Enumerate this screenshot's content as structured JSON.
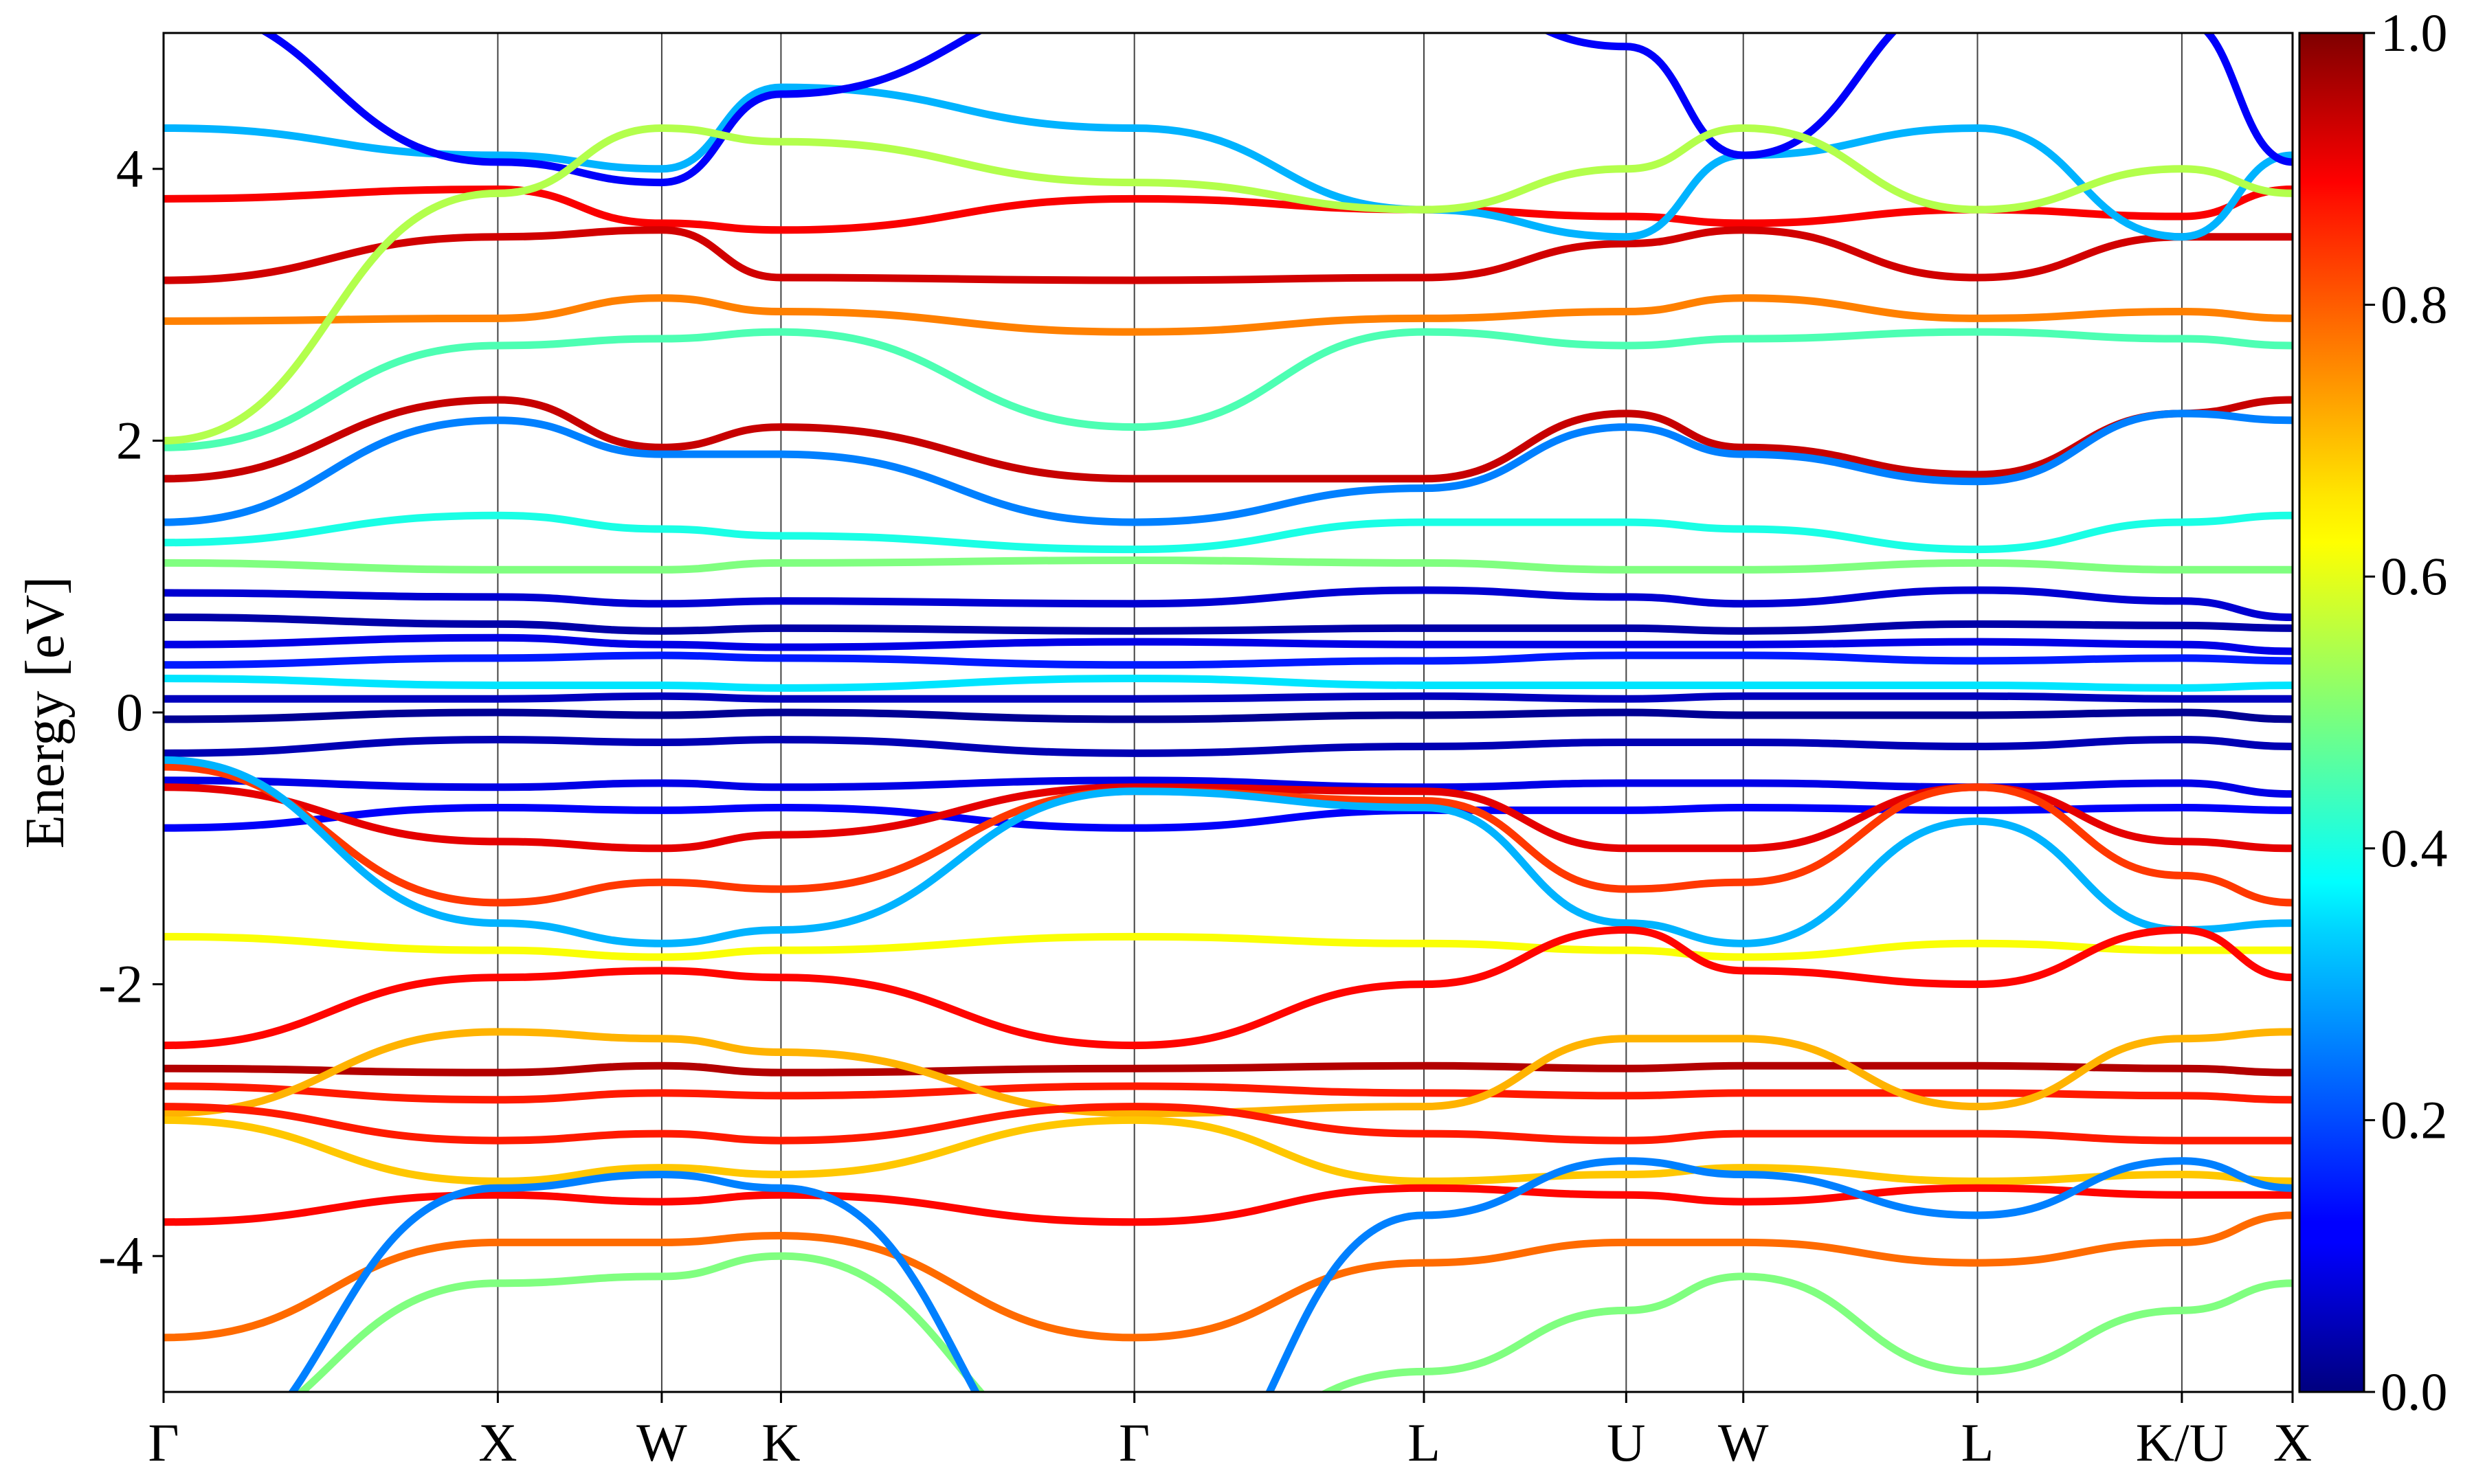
{
  "chart_data": {
    "type": "line",
    "title": "",
    "xlabel": "",
    "ylabel": "Energy [eV]",
    "ylim": [
      -5,
      5
    ],
    "yticks": [
      -4,
      -2,
      0,
      2,
      4
    ],
    "ytick_labels": [
      "-4",
      "-2",
      "0",
      "2",
      "4"
    ],
    "kpoints": [
      {
        "label": "Γ",
        "x": 0.0
      },
      {
        "label": "X",
        "x": 0.157
      },
      {
        "label": "W",
        "x": 0.234
      },
      {
        "label": "K",
        "x": 0.29
      },
      {
        "label": "Γ",
        "x": 0.456
      },
      {
        "label": "L",
        "x": 0.592
      },
      {
        "label": "U",
        "x": 0.687
      },
      {
        "label": "W",
        "x": 0.742
      },
      {
        "label": "L",
        "x": 0.852
      },
      {
        "label": "K/U",
        "x": 0.948
      },
      {
        "label": "X",
        "x": 1.0
      }
    ],
    "colormap": "jet",
    "colorbar": {
      "range": [
        0.0,
        1.0
      ],
      "ticks": [
        0.0,
        0.2,
        0.4,
        0.6,
        0.8,
        1.0
      ],
      "tick_labels": [
        "0.0",
        "0.2",
        "0.4",
        "0.6",
        "0.8",
        "1.0"
      ]
    },
    "grid": false,
    "series": [
      {
        "x": [
          0.0,
          0.157,
          0.234,
          0.29,
          0.456,
          0.592,
          0.687,
          0.742,
          0.852,
          0.948,
          1.0
        ],
        "y": [
          3.78,
          3.85,
          3.6,
          3.55,
          3.78,
          3.7,
          3.65,
          3.6,
          3.7,
          3.65,
          3.85
        ],
        "c": 0.88
      },
      {
        "x": [
          0.0,
          0.157,
          0.234,
          0.29,
          0.456,
          0.592,
          0.687,
          0.742,
          0.852,
          0.948,
          1.0
        ],
        "y": [
          3.18,
          3.5,
          3.55,
          3.2,
          3.18,
          3.2,
          3.45,
          3.55,
          3.2,
          3.5,
          3.5
        ],
        "c": 0.92
      },
      {
        "x": [
          0.0,
          0.157,
          0.234,
          0.29,
          0.456,
          0.592,
          0.687,
          0.742,
          0.852,
          0.948,
          1.0
        ],
        "y": [
          2.88,
          2.9,
          3.05,
          2.95,
          2.8,
          2.9,
          2.95,
          3.05,
          2.9,
          2.95,
          2.9
        ],
        "c": 0.75
      },
      {
        "x": [
          0.0,
          0.157,
          0.234,
          0.29,
          0.456,
          0.592,
          0.687,
          0.742,
          0.852,
          0.948,
          1.0
        ],
        "y": [
          1.72,
          2.3,
          1.95,
          2.1,
          1.72,
          1.72,
          2.2,
          1.95,
          1.75,
          2.2,
          2.3
        ],
        "c": 0.93
      },
      {
        "x": [
          0.0,
          0.157,
          0.234,
          0.29,
          0.456,
          0.592,
          0.687,
          0.742,
          0.852,
          0.948,
          1.0
        ],
        "y": [
          1.4,
          2.15,
          1.9,
          1.9,
          1.4,
          1.65,
          2.1,
          1.9,
          1.7,
          2.2,
          2.15
        ],
        "c": 0.25
      },
      {
        "x": [
          0.0,
          0.157,
          0.234,
          0.29,
          0.456,
          0.592,
          0.687,
          0.742,
          0.852,
          0.948,
          1.0
        ],
        "y": [
          1.95,
          2.7,
          2.75,
          2.8,
          2.1,
          2.8,
          2.7,
          2.75,
          2.8,
          2.75,
          2.7
        ],
        "c": 0.45
      },
      {
        "x": [
          0.0,
          0.157,
          0.234,
          0.29,
          0.456,
          0.592,
          0.687,
          0.742,
          0.852,
          0.948,
          1.0
        ],
        "y": [
          1.25,
          1.45,
          1.35,
          1.3,
          1.2,
          1.4,
          1.4,
          1.35,
          1.2,
          1.4,
          1.45
        ],
        "c": 0.4
      },
      {
        "x": [
          0.0,
          0.157,
          0.234,
          0.29,
          0.456,
          0.592,
          0.687,
          0.742,
          0.852,
          0.948,
          1.0
        ],
        "y": [
          1.1,
          1.05,
          1.05,
          1.1,
          1.12,
          1.1,
          1.05,
          1.05,
          1.1,
          1.05,
          1.05
        ],
        "c": 0.5
      },
      {
        "x": [
          0.0,
          0.157,
          0.234,
          0.29,
          0.456,
          0.592,
          0.687,
          0.742,
          0.852,
          0.948,
          1.0
        ],
        "y": [
          0.88,
          0.85,
          0.8,
          0.82,
          0.8,
          0.9,
          0.85,
          0.8,
          0.9,
          0.82,
          0.7
        ],
        "c": 0.08
      },
      {
        "x": [
          0.0,
          0.157,
          0.234,
          0.29,
          0.456,
          0.592,
          0.687,
          0.742,
          0.852,
          0.948,
          1.0
        ],
        "y": [
          0.7,
          0.65,
          0.6,
          0.62,
          0.6,
          0.62,
          0.62,
          0.6,
          0.65,
          0.64,
          0.62
        ],
        "c": 0.04
      },
      {
        "x": [
          0.0,
          0.157,
          0.234,
          0.29,
          0.456,
          0.592,
          0.687,
          0.742,
          0.852,
          0.948,
          1.0
        ],
        "y": [
          0.5,
          0.55,
          0.5,
          0.48,
          0.52,
          0.5,
          0.5,
          0.5,
          0.52,
          0.5,
          0.45
        ],
        "c": 0.1
      },
      {
        "x": [
          0.0,
          0.157,
          0.234,
          0.29,
          0.456,
          0.592,
          0.687,
          0.742,
          0.852,
          0.948,
          1.0
        ],
        "y": [
          0.35,
          0.4,
          0.42,
          0.4,
          0.35,
          0.38,
          0.42,
          0.42,
          0.38,
          0.4,
          0.38
        ],
        "c": 0.15
      },
      {
        "x": [
          0.0,
          0.157,
          0.234,
          0.29,
          0.456,
          0.592,
          0.687,
          0.742,
          0.852,
          0.948,
          1.0
        ],
        "y": [
          0.25,
          0.2,
          0.2,
          0.18,
          0.25,
          0.2,
          0.2,
          0.2,
          0.2,
          0.18,
          0.2
        ],
        "c": 0.35
      },
      {
        "x": [
          0.0,
          0.157,
          0.234,
          0.29,
          0.456,
          0.592,
          0.687,
          0.742,
          0.852,
          0.948,
          1.0
        ],
        "y": [
          0.1,
          0.1,
          0.12,
          0.1,
          0.1,
          0.12,
          0.1,
          0.12,
          0.12,
          0.1,
          0.1
        ],
        "c": 0.06
      },
      {
        "x": [
          0.0,
          0.157,
          0.234,
          0.29,
          0.456,
          0.592,
          0.687,
          0.742,
          0.852,
          0.948,
          1.0
        ],
        "y": [
          -0.05,
          0.0,
          -0.02,
          0.0,
          -0.05,
          -0.02,
          0.0,
          -0.02,
          -0.02,
          0.0,
          -0.05
        ],
        "c": 0.02
      },
      {
        "x": [
          0.0,
          0.157,
          0.234,
          0.29,
          0.456,
          0.592,
          0.687,
          0.742,
          0.852,
          0.948,
          1.0
        ],
        "y": [
          -0.3,
          -0.2,
          -0.22,
          -0.2,
          -0.3,
          -0.25,
          -0.22,
          -0.22,
          -0.25,
          -0.2,
          -0.25
        ],
        "c": 0.05
      },
      {
        "x": [
          0.0,
          0.157,
          0.234,
          0.29,
          0.456,
          0.592,
          0.687,
          0.742,
          0.852,
          0.948,
          1.0
        ],
        "y": [
          -0.5,
          -0.55,
          -0.52,
          -0.55,
          -0.5,
          -0.55,
          -0.52,
          -0.52,
          -0.55,
          -0.52,
          -0.6
        ],
        "c": 0.1
      },
      {
        "x": [
          0.0,
          0.157,
          0.234,
          0.29,
          0.456,
          0.592,
          0.687,
          0.742,
          0.852,
          0.948,
          1.0
        ],
        "y": [
          -0.85,
          -0.7,
          -0.72,
          -0.7,
          -0.85,
          -0.72,
          -0.72,
          -0.7,
          -0.72,
          -0.7,
          -0.72
        ],
        "c": 0.12
      },
      {
        "x": [
          0.0,
          0.157,
          0.234,
          0.29,
          0.456,
          0.592,
          0.687,
          0.742,
          0.852,
          0.948,
          1.0
        ],
        "y": [
          -0.55,
          -0.95,
          -1.0,
          -0.9,
          -0.55,
          -0.58,
          -1.0,
          -1.0,
          -0.55,
          -0.95,
          -1.0
        ],
        "c": 0.9
      },
      {
        "x": [
          0.0,
          0.157,
          0.234,
          0.29,
          0.456,
          0.592,
          0.687,
          0.742,
          0.852,
          0.948,
          1.0
        ],
        "y": [
          -0.4,
          -1.4,
          -1.25,
          -1.3,
          -0.58,
          -0.65,
          -1.3,
          -1.25,
          -0.55,
          -1.2,
          -1.4
        ],
        "c": 0.82
      },
      {
        "x": [
          0.0,
          0.157,
          0.234,
          0.29,
          0.456,
          0.592,
          0.687,
          0.742,
          0.852,
          0.948,
          1.0
        ],
        "y": [
          -0.35,
          -1.55,
          -1.7,
          -1.6,
          -0.58,
          -0.7,
          -1.55,
          -1.7,
          -0.8,
          -1.6,
          -1.55
        ],
        "c": 0.3
      },
      {
        "x": [
          0.0,
          0.157,
          0.234,
          0.29,
          0.456,
          0.592,
          0.687,
          0.742,
          0.852,
          0.948,
          1.0
        ],
        "y": [
          -1.65,
          -1.75,
          -1.8,
          -1.75,
          -1.65,
          -1.7,
          -1.75,
          -1.8,
          -1.7,
          -1.75,
          -1.75
        ],
        "c": 0.62
      },
      {
        "x": [
          0.0,
          0.157,
          0.234,
          0.29,
          0.456,
          0.592,
          0.687,
          0.742,
          0.852,
          0.948,
          1.0
        ],
        "y": [
          -2.45,
          -1.95,
          -1.9,
          -1.95,
          -2.45,
          -2.0,
          -1.6,
          -1.9,
          -2.0,
          -1.6,
          -1.95
        ],
        "c": 0.87
      },
      {
        "x": [
          0.0,
          0.157,
          0.234,
          0.29,
          0.456,
          0.592,
          0.687,
          0.742,
          0.852,
          0.948,
          1.0
        ],
        "y": [
          -2.62,
          -2.65,
          -2.6,
          -2.65,
          -2.62,
          -2.6,
          -2.62,
          -2.6,
          -2.6,
          -2.62,
          -2.65
        ],
        "c": 0.95
      },
      {
        "x": [
          0.0,
          0.157,
          0.234,
          0.29,
          0.456,
          0.592,
          0.687,
          0.742,
          0.852,
          0.948,
          1.0
        ],
        "y": [
          -2.75,
          -2.85,
          -2.8,
          -2.82,
          -2.75,
          -2.8,
          -2.82,
          -2.8,
          -2.8,
          -2.82,
          -2.85
        ],
        "c": 0.85
      },
      {
        "x": [
          0.0,
          0.157,
          0.234,
          0.29,
          0.456,
          0.592,
          0.687,
          0.742,
          0.852,
          0.948,
          1.0
        ],
        "y": [
          -2.95,
          -2.35,
          -2.4,
          -2.5,
          -2.95,
          -2.9,
          -2.4,
          -2.4,
          -2.9,
          -2.4,
          -2.35
        ],
        "c": 0.7
      },
      {
        "x": [
          0.0,
          0.157,
          0.234,
          0.29,
          0.456,
          0.592,
          0.687,
          0.742,
          0.852,
          0.948,
          1.0
        ],
        "y": [
          -2.9,
          -3.15,
          -3.1,
          -3.15,
          -2.9,
          -3.1,
          -3.15,
          -3.1,
          -3.1,
          -3.15,
          -3.15
        ],
        "c": 0.85
      },
      {
        "x": [
          0.0,
          0.157,
          0.234,
          0.29,
          0.456,
          0.592,
          0.687,
          0.742,
          0.852,
          0.948,
          1.0
        ],
        "y": [
          -3.0,
          -3.45,
          -3.35,
          -3.4,
          -3.0,
          -3.45,
          -3.4,
          -3.35,
          -3.45,
          -3.4,
          -3.45
        ],
        "c": 0.68
      },
      {
        "x": [
          0.0,
          0.157,
          0.234,
          0.29,
          0.456,
          0.592,
          0.687,
          0.742,
          0.852,
          0.948,
          1.0
        ],
        "y": [
          -3.75,
          -3.55,
          -3.6,
          -3.55,
          -3.75,
          -3.5,
          -3.55,
          -3.6,
          -3.5,
          -3.55,
          -3.55
        ],
        "c": 0.87
      },
      {
        "x": [
          0.0,
          0.157,
          0.234,
          0.29,
          0.456,
          0.592,
          0.687,
          0.742,
          0.852,
          0.948,
          1.0
        ],
        "y": [
          -4.6,
          -3.9,
          -3.9,
          -3.85,
          -4.6,
          -4.05,
          -3.9,
          -3.9,
          -4.05,
          -3.9,
          -3.7
        ],
        "c": 0.77
      },
      {
        "x": [
          0.0,
          0.157,
          0.234,
          0.29,
          0.456,
          0.592,
          0.687,
          0.742,
          0.852,
          0.948,
          1.0
        ],
        "y": [
          -5.4,
          -4.2,
          -4.15,
          -4.0,
          -5.6,
          -4.85,
          -4.4,
          -4.15,
          -4.85,
          -4.4,
          -4.2
        ],
        "c": 0.5
      },
      {
        "x": [
          0.0,
          0.157,
          0.234,
          0.29,
          0.456,
          0.592,
          0.687,
          0.742,
          0.852,
          0.948,
          1.0
        ],
        "y": [
          -5.6,
          -3.5,
          -3.4,
          -3.5,
          -6.0,
          -3.7,
          -3.3,
          -3.4,
          -3.7,
          -3.3,
          -3.5
        ],
        "c": 0.25
      },
      {
        "x": [
          0.0,
          0.157,
          0.234,
          0.29,
          0.456,
          0.592,
          0.687,
          0.742,
          0.852,
          0.948,
          1.0
        ],
        "y": [
          4.3,
          4.1,
          4.0,
          4.6,
          4.3,
          3.7,
          3.5,
          4.1,
          4.3,
          3.5,
          4.1
        ],
        "c": 0.3
      },
      {
        "x": [
          0.0,
          0.157,
          0.234,
          0.29,
          0.456,
          0.592,
          0.687,
          0.742,
          0.852,
          0.948,
          1.0
        ],
        "y": [
          5.2,
          4.05,
          3.9,
          4.55,
          5.3,
          5.3,
          4.9,
          4.1,
          5.3,
          5.1,
          4.05
        ],
        "c": 0.12
      },
      {
        "x": [
          0.0,
          0.157,
          0.234,
          0.29,
          0.456,
          0.592,
          0.687,
          0.742,
          0.852,
          0.948,
          1.0
        ],
        "y": [
          2.0,
          3.82,
          4.3,
          4.2,
          3.9,
          3.7,
          4.0,
          4.3,
          3.7,
          4.0,
          3.82
        ],
        "c": 0.55
      }
    ]
  }
}
